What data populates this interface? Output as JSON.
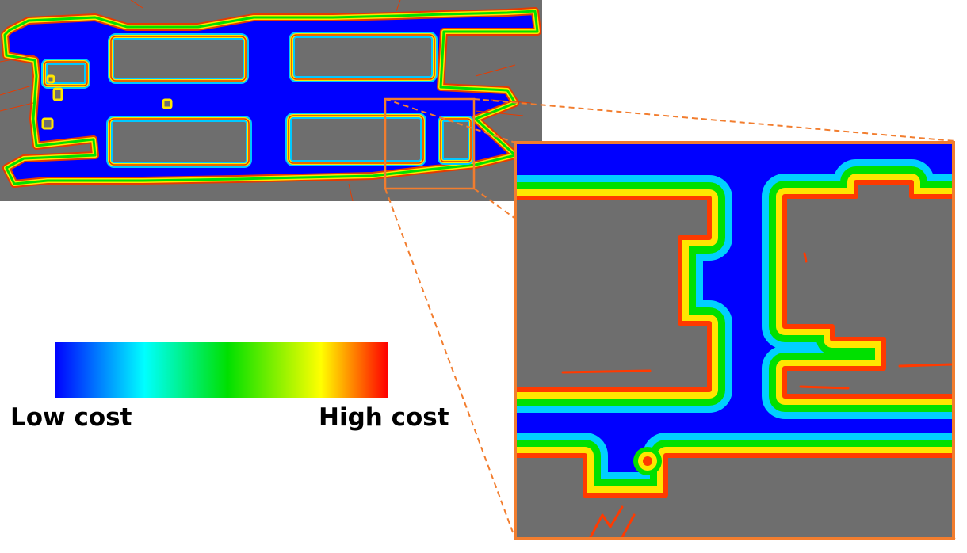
{
  "figure": {
    "description_free": true,
    "colorbar": {
      "low_label": "Low cost",
      "high_label": "High cost",
      "stops": [
        "#0000ff",
        "#00ffff",
        "#00e000",
        "#ffff00",
        "#ff0000"
      ]
    },
    "colors": {
      "free_space": "#0000ff",
      "obstacle": "#6e6e6e",
      "zoom_outline": "#f27d2e",
      "wall": "#e63b00"
    }
  }
}
